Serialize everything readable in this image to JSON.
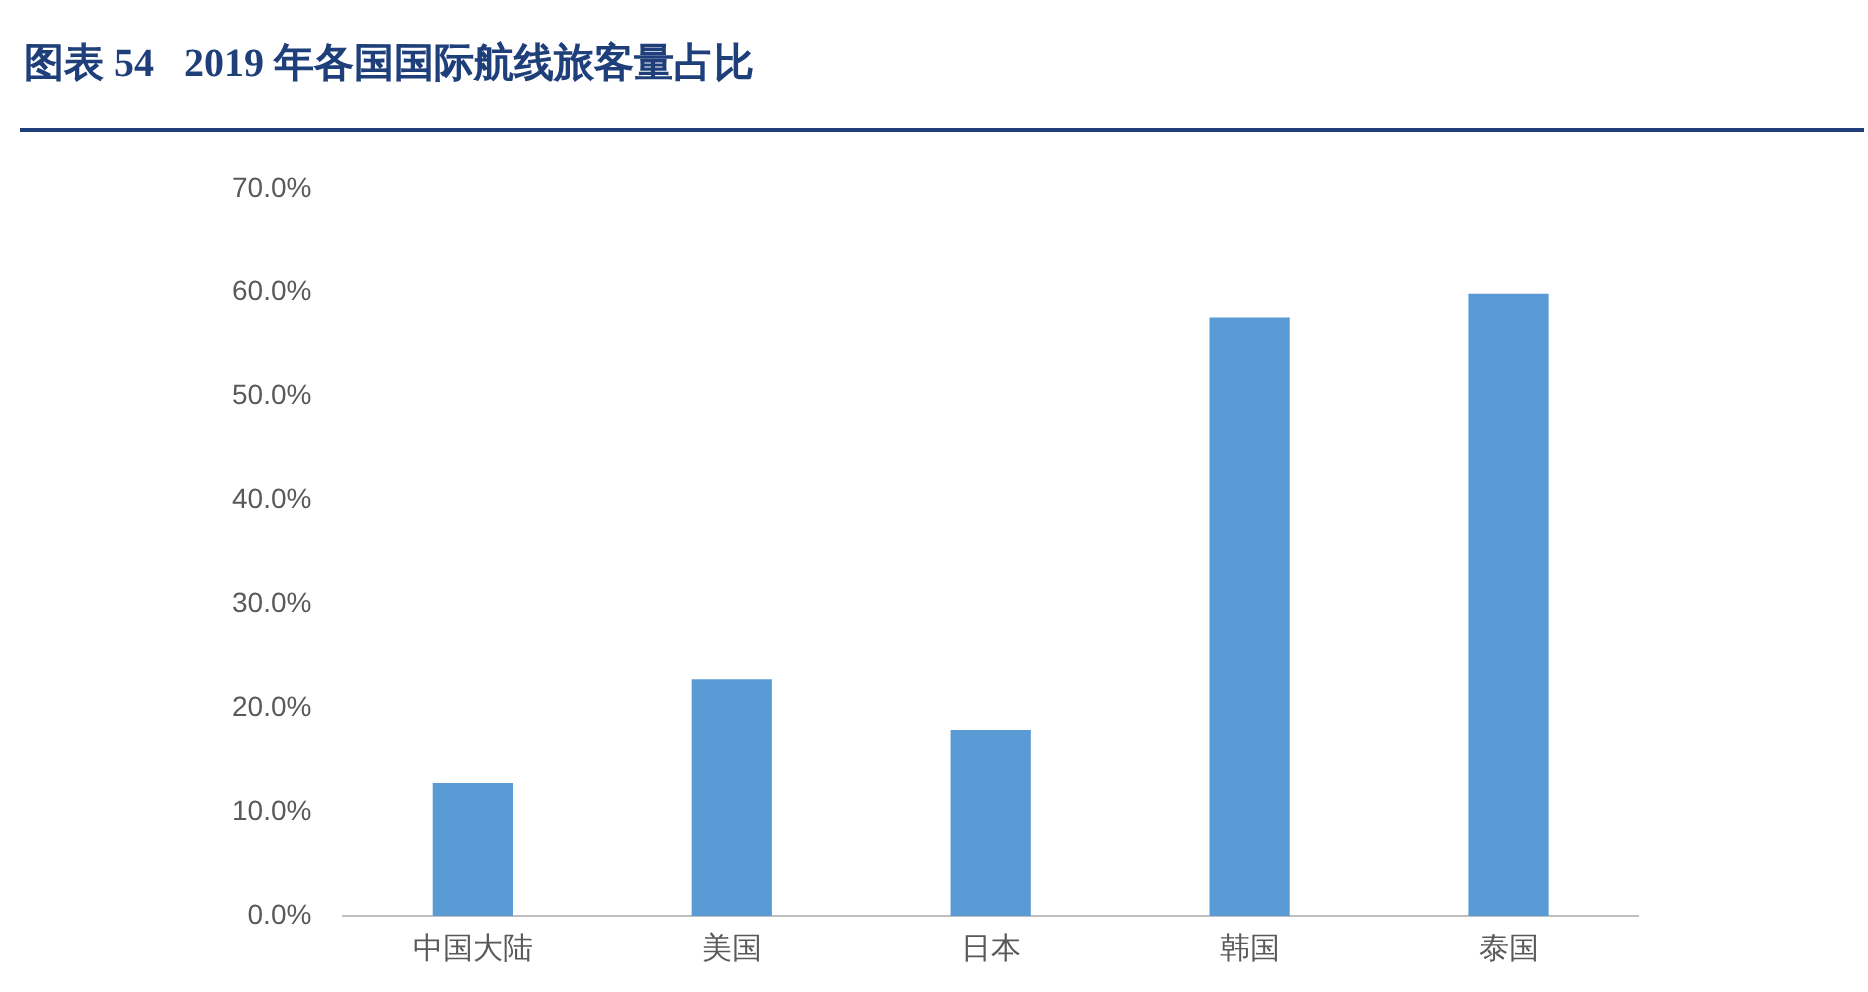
{
  "chart_data": {
    "type": "bar",
    "title": "图表 54   2019 年各国国际航线旅客量占比",
    "categories": [
      "中国大陆",
      "美国",
      "日本",
      "韩国",
      "泰国"
    ],
    "values": [
      12.8,
      22.8,
      17.9,
      57.6,
      59.9
    ],
    "color": "#5b9bd5",
    "ylim": [
      0,
      70
    ],
    "yticks": [
      {
        "value": 0,
        "label": "0.0%"
      },
      {
        "value": 10,
        "label": "10.0%"
      },
      {
        "value": 20,
        "label": "20.0%"
      },
      {
        "value": 30,
        "label": "30.0%"
      },
      {
        "value": 40,
        "label": "40.0%"
      },
      {
        "value": 50,
        "label": "50.0%"
      },
      {
        "value": 60,
        "label": "60.0%"
      },
      {
        "value": 70,
        "label": "70.0%"
      }
    ],
    "grid": false,
    "legend": false
  }
}
